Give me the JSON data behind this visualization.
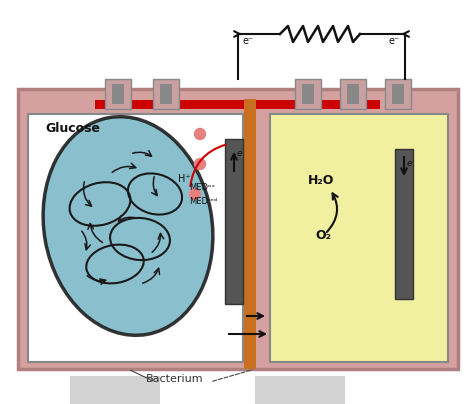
{
  "bg_color": "#ffffff",
  "outer_box_color": "#d4a0a0",
  "outer_box_edge": "#b08080",
  "inner_left_bg": "#ffffff",
  "inner_left_edge": "#888888",
  "inner_right_bg": "#f0f0a0",
  "inner_right_edge": "#888888",
  "bacterium_color": "#7ab8c8",
  "bacterium_edge": "#1a1a1a",
  "electrode_color": "#555555",
  "electrode_edge": "#333333",
  "membrane_color": "#c87020",
  "red_bar_color": "#cc0000",
  "circuit_color": "#111111",
  "connector_face": "#c8a0a0",
  "connector_edge": "#888888",
  "dot_color": "#e88080",
  "red_line_color": "#cc0000",
  "arrow_color": "#111111",
  "glucose_label": "Glucose",
  "h2o_label": "H₂O",
  "o2_label": "O₂",
  "h_label": "H⁺",
  "med_ox_label": "MEDᵒˣ",
  "med_red_label": "MEDʳᵉᵈ",
  "bacterium_label": "Bacterium",
  "e_left": "e⁻",
  "e_right": "e⁻",
  "e_elec_left": "e",
  "e_elec_right": "e"
}
